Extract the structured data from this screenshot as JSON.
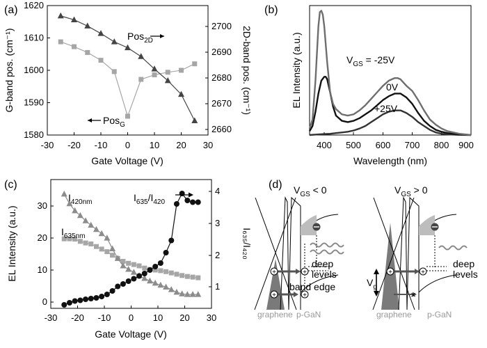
{
  "chart_data": [
    {
      "panel": "(a)",
      "type": "line",
      "xlabel": "Gate Voltage (V)",
      "ylabel": "G-band pos. (cm⁻¹)",
      "y2label": "2D-band pos. (cm⁻¹)",
      "xlim": [
        -30,
        30
      ],
      "ylim": [
        1580,
        1620
      ],
      "y2lim": [
        2655,
        2705
      ],
      "xticks": [
        "-30",
        "-20",
        "-10",
        "0",
        "10",
        "20",
        "30"
      ],
      "yticks": [
        "1580",
        "1590",
        "1600",
        "1610",
        "1620"
      ],
      "y2ticks": [
        "2660",
        "2670",
        "2680",
        "2690",
        "2700"
      ],
      "series": [
        {
          "name": "Pos_G",
          "label_main": "Pos",
          "label_sub": "G",
          "axis": "left",
          "marker": "square",
          "color": "#a6a6a6",
          "x": [
            -25,
            -20,
            -15,
            -10,
            -5,
            0,
            5,
            10,
            15,
            20,
            25
          ],
          "y": [
            1608.8,
            1607.3,
            1605.5,
            1603.1,
            1599.6,
            1585.8,
            1597.2,
            1598.6,
            1599.4,
            1600.0,
            1602.0
          ]
        },
        {
          "name": "Pos_2D",
          "label_main": "Pos",
          "label_sub": "2D",
          "axis": "right",
          "marker": "triangle",
          "color": "#444444",
          "x": [
            -25,
            -20,
            -15,
            -10,
            -5,
            0,
            5,
            10,
            15,
            20,
            25
          ],
          "y": [
            2701,
            2699.5,
            2697.1,
            2694.2,
            2691,
            2688.7,
            2685.3,
            2680.5,
            2676,
            2670.7,
            2660.5
          ]
        }
      ]
    },
    {
      "panel": "(b)",
      "type": "line",
      "xlabel": "Wavelength (nm)",
      "ylabel": "EL Intensity (a.u.)",
      "xlim": [
        350,
        900
      ],
      "ylim": [
        0,
        1.0
      ],
      "xticks": [
        "400",
        "500",
        "600",
        "700",
        "800",
        "900"
      ],
      "series": [
        {
          "name": "V_GS = -25V",
          "label_prefix": "V",
          "label_sub": "GS",
          "label_suffix": " = -25V",
          "color": "#6e6e6e",
          "x": [
            350,
            360,
            370,
            380,
            385,
            390,
            395,
            400,
            410,
            420,
            430,
            440,
            460,
            480,
            500,
            520,
            540,
            560,
            580,
            600,
            620,
            640,
            650,
            660,
            680,
            700,
            720,
            740,
            760,
            780,
            800,
            820,
            840,
            860,
            880,
            900
          ],
          "y": [
            0.05,
            0.12,
            0.42,
            0.84,
            0.95,
            0.96,
            0.93,
            0.84,
            0.56,
            0.33,
            0.24,
            0.2,
            0.16,
            0.15,
            0.16,
            0.19,
            0.23,
            0.28,
            0.33,
            0.38,
            0.42,
            0.44,
            0.44,
            0.43,
            0.38,
            0.34,
            0.27,
            0.19,
            0.12,
            0.08,
            0.05,
            0.03,
            0.02,
            0.01,
            0.005,
            0.0
          ]
        },
        {
          "name": "0V",
          "label_prefix": "",
          "label_sub": "",
          "label_suffix": "0V",
          "color": "#111111",
          "x": [
            350,
            360,
            370,
            380,
            390,
            400,
            405,
            410,
            420,
            430,
            440,
            460,
            480,
            500,
            520,
            540,
            560,
            580,
            600,
            620,
            640,
            650,
            660,
            680,
            700,
            720,
            740,
            760,
            780,
            800,
            820,
            840,
            860,
            880,
            900
          ],
          "y": [
            0.03,
            0.07,
            0.18,
            0.32,
            0.42,
            0.45,
            0.45,
            0.43,
            0.33,
            0.22,
            0.15,
            0.11,
            0.1,
            0.11,
            0.13,
            0.16,
            0.19,
            0.23,
            0.27,
            0.3,
            0.32,
            0.32,
            0.32,
            0.29,
            0.24,
            0.17,
            0.11,
            0.07,
            0.04,
            0.025,
            0.015,
            0.01,
            0.005,
            0.003,
            0.0
          ]
        },
        {
          "name": "+25V",
          "label_prefix": "",
          "label_sub": "",
          "label_suffix": "+25V",
          "color": "#333333",
          "x": [
            350,
            380,
            400,
            420,
            440,
            460,
            480,
            500,
            520,
            540,
            560,
            580,
            600,
            620,
            640,
            660,
            680,
            700,
            720,
            740,
            760,
            780,
            800,
            820,
            840,
            860,
            900
          ],
          "y": [
            0.0,
            0.005,
            0.008,
            0.01,
            0.015,
            0.02,
            0.025,
            0.035,
            0.05,
            0.07,
            0.1,
            0.13,
            0.16,
            0.18,
            0.19,
            0.19,
            0.17,
            0.14,
            0.1,
            0.07,
            0.04,
            0.02,
            0.01,
            0.005,
            0.003,
            0.001,
            0.0
          ]
        }
      ]
    },
    {
      "panel": "(c)",
      "type": "line",
      "xlabel": "Gate Voltage (V)",
      "ylabel": "EL Intensity (a.u.)",
      "y2label": "I₆₃₅/I₄₂₀",
      "xlim": [
        -30,
        30
      ],
      "ylim": [
        -2,
        38
      ],
      "y2lim": [
        0.5,
        4.2
      ],
      "xticks": [
        "-30",
        "-20",
        "-10",
        "0",
        "10",
        "20",
        "30"
      ],
      "yticks": [
        "0",
        "10",
        "20",
        "30"
      ],
      "y2ticks": [
        "1",
        "2",
        "3",
        "4"
      ],
      "series": [
        {
          "name": "I420nm",
          "label_main": "I",
          "label_sub": "420nm",
          "axis": "left",
          "marker": "triangle",
          "color": "#8c8c8c",
          "x": [
            -25,
            -23,
            -21,
            -19,
            -17,
            -15,
            -13,
            -11,
            -9,
            -7,
            -5,
            -3,
            -1,
            1,
            3,
            5,
            7,
            9,
            11,
            13,
            15,
            17,
            19,
            21,
            23,
            25
          ],
          "y": [
            33.5,
            30.5,
            28.3,
            26.8,
            25.2,
            23.8,
            22.5,
            21.2,
            19.8,
            16.5,
            13.5,
            11.2,
            10.1,
            9.2,
            8.1,
            7.3,
            6.5,
            5.8,
            5.2,
            4.6,
            3.8,
            3.0,
            2.5,
            2.3,
            2.3,
            2.3
          ]
        },
        {
          "name": "I635nm",
          "label_main": "I",
          "label_sub": "635nm",
          "axis": "left",
          "marker": "square",
          "color": "#a6a6a6",
          "x": [
            -25,
            -23,
            -21,
            -19,
            -17,
            -15,
            -13,
            -11,
            -9,
            -7,
            -5,
            -3,
            -1,
            1,
            3,
            5,
            7,
            9,
            11,
            13,
            15,
            17,
            19,
            21,
            23,
            25
          ],
          "y": [
            19.6,
            19.6,
            19.5,
            18.8,
            18.3,
            18.0,
            17.2,
            16.4,
            15.6,
            14.5,
            13.5,
            12.6,
            12.0,
            11.6,
            11.2,
            10.5,
            10.1,
            9.9,
            9.7,
            9.4,
            9.0,
            8.6,
            8.2,
            7.9,
            7.7,
            7.5
          ]
        },
        {
          "name": "I635/I420",
          "label_main": "I",
          "label_sub": "635",
          "label_mid": "/I",
          "label_sub2": "420",
          "axis": "right",
          "marker": "circle",
          "color": "#111111",
          "x": [
            -25,
            -23,
            -21,
            -19,
            -17,
            -15,
            -13,
            -11,
            -9,
            -7,
            -5,
            -3,
            -1,
            1,
            3,
            5,
            7,
            9,
            11,
            13,
            15,
            17,
            19,
            21,
            23,
            25
          ],
          "y": [
            0.6,
            0.66,
            0.71,
            0.73,
            0.76,
            0.78,
            0.8,
            0.84,
            0.9,
            1.0,
            1.13,
            1.2,
            1.28,
            1.35,
            1.43,
            1.5,
            1.6,
            1.7,
            1.8,
            2.1,
            2.45,
            3.5,
            3.8,
            3.6,
            3.55,
            3.55
          ]
        }
      ]
    }
  ],
  "panel_a": {
    "label": "(a)"
  },
  "panel_b": {
    "label": "(b)"
  },
  "panel_c": {
    "label": "(c)"
  },
  "panel_d": {
    "label": "(d)",
    "left_condition": {
      "main": "V",
      "sub": "GS",
      "rest": " < 0"
    },
    "right_condition": {
      "main": "V",
      "sub": "GS",
      "rest": " > 0"
    },
    "deep_levels_line1": "deep",
    "deep_levels_line2": "levels",
    "band_edge": "band edge",
    "vg_main": "V",
    "vg_sub": "g",
    "graphene": "graphene",
    "pgan": "p-GaN"
  }
}
